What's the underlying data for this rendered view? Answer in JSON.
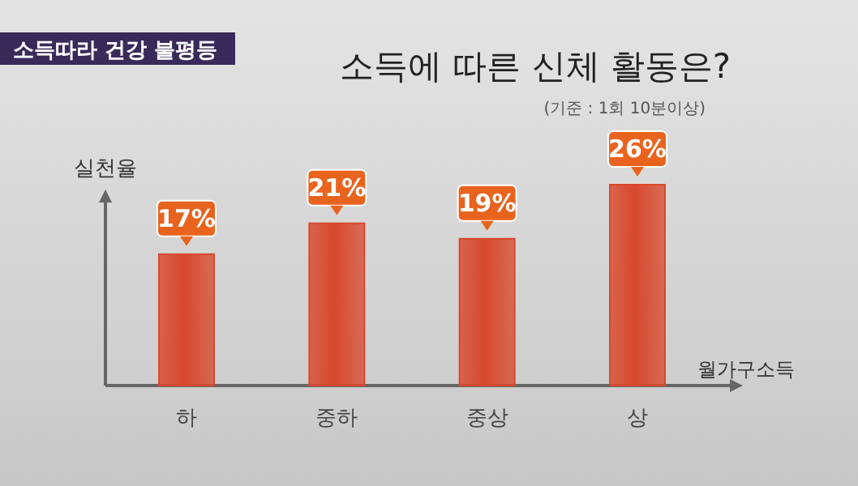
{
  "chart_data": {
    "type": "bar",
    "title": "소득에 따른 신체 활동은?",
    "subtitle": "(기준 : 1회 10분이상)",
    "ylabel": "실천율",
    "xlabel": "월가구소득",
    "annotations": [
      "소득따라 건강 불평등"
    ],
    "categories": [
      "하",
      "중하",
      "중상",
      "상"
    ],
    "values": [
      17,
      21,
      19,
      26
    ],
    "value_labels": [
      "17%",
      "21%",
      "19%",
      "26%"
    ],
    "color": "#d8482c"
  }
}
